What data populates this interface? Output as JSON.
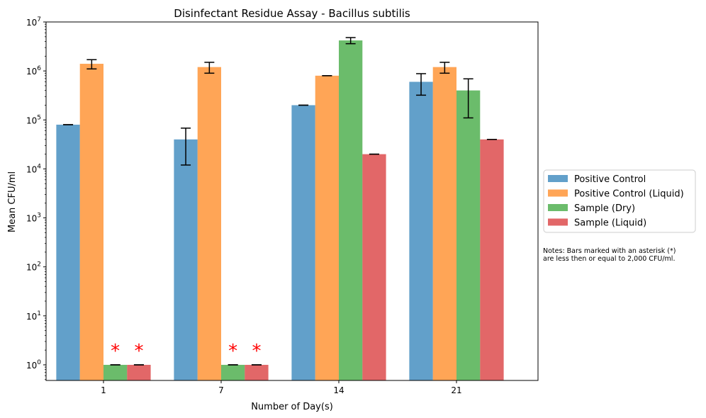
{
  "chart_data": {
    "type": "bar",
    "title": "Disinfectant Residue Assay - Bacillus subtilis",
    "xlabel": "Number of Day(s)",
    "ylabel": "Mean CFU/ml",
    "y_scale": "log",
    "ylim": [
      0.48,
      10000000
    ],
    "y_ticks": [
      {
        "value": 1,
        "base": "10",
        "exp": "0"
      },
      {
        "value": 10,
        "base": "10",
        "exp": "1"
      },
      {
        "value": 100,
        "base": "10",
        "exp": "2"
      },
      {
        "value": 1000,
        "base": "10",
        "exp": "3"
      },
      {
        "value": 10000,
        "base": "10",
        "exp": "4"
      },
      {
        "value": 100000,
        "base": "10",
        "exp": "5"
      },
      {
        "value": 1000000,
        "base": "10",
        "exp": "6"
      },
      {
        "value": 10000000,
        "base": "10",
        "exp": "7"
      }
    ],
    "categories": [
      "1",
      "7",
      "14",
      "21"
    ],
    "series": [
      {
        "name": "Positive Control",
        "color": "#1f77b4",
        "values": [
          80000,
          40000,
          200000,
          600000
        ],
        "errors": [
          0,
          28000,
          0,
          280000
        ]
      },
      {
        "name": "Positive Control (Liquid)",
        "color": "#ff7f0e",
        "values": [
          1400000,
          1200000,
          800000,
          1200000
        ],
        "errors": [
          300000,
          300000,
          0,
          300000
        ]
      },
      {
        "name": "Sample (Dry)",
        "color": "#2ca02c",
        "values": [
          1,
          1,
          4200000,
          400000
        ],
        "errors": [
          0,
          0,
          600000,
          290000
        ]
      },
      {
        "name": "Sample (Liquid)",
        "color": "#d62728",
        "values": [
          1,
          1,
          20000,
          40000
        ],
        "errors": [
          0,
          0,
          0,
          0
        ]
      }
    ],
    "asterisk_marks": [
      {
        "category": "1",
        "series": "Sample (Dry)",
        "text": "*"
      },
      {
        "category": "1",
        "series": "Sample (Liquid)",
        "text": "*"
      },
      {
        "category": "7",
        "series": "Sample (Dry)",
        "text": "*"
      },
      {
        "category": "7",
        "series": "Sample (Liquid)",
        "text": "*"
      }
    ],
    "asterisk_color": "#ff0000",
    "legend_placement": "right, outside plot",
    "notes": "Notes: Bars marked with an asterisk (*) are less then or equal to 2,000 CFU/ml.",
    "notes_lines": [
      "Notes: Bars marked with an asterisk (*)",
      "are less then or equal to 2,000 CFU/ml."
    ],
    "grid": false
  }
}
